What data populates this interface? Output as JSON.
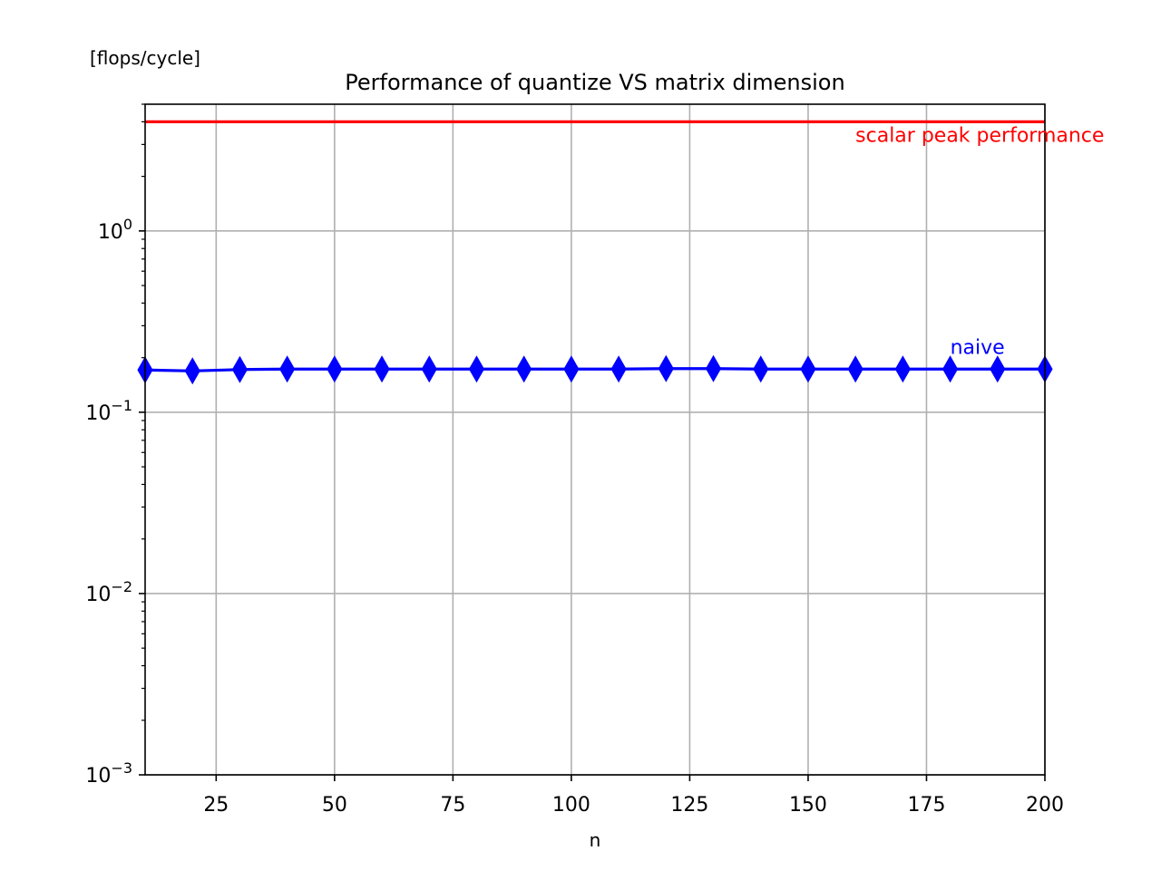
{
  "chart_data": {
    "type": "line",
    "title": "Performance of quantize VS matrix dimension",
    "xlabel": "n",
    "ylabel": "[flops/cycle]",
    "x_scale": "linear",
    "y_scale": "log",
    "xlim": [
      10,
      200
    ],
    "ylim": [
      0.001,
      5
    ],
    "x_ticks": [
      25,
      50,
      75,
      100,
      125,
      150,
      175,
      200
    ],
    "y_ticks": [
      {
        "value": 0.001,
        "base": "10",
        "exp": "−3"
      },
      {
        "value": 0.01,
        "base": "10",
        "exp": "−2"
      },
      {
        "value": 0.1,
        "base": "10",
        "exp": "−1"
      },
      {
        "value": 1,
        "base": "10",
        "exp": "0"
      }
    ],
    "grid": true,
    "series": [
      {
        "name": "naive",
        "color": "#0000ff",
        "marker": "thin-diamond",
        "x": [
          10,
          20,
          30,
          40,
          50,
          60,
          70,
          80,
          90,
          100,
          110,
          120,
          130,
          140,
          150,
          160,
          170,
          180,
          190,
          200
        ],
        "values": [
          0.171,
          0.169,
          0.172,
          0.173,
          0.173,
          0.173,
          0.173,
          0.173,
          0.173,
          0.173,
          0.173,
          0.174,
          0.174,
          0.173,
          0.173,
          0.173,
          0.173,
          0.173,
          0.173,
          0.173
        ]
      }
    ],
    "reference_lines": [
      {
        "name": "scalar peak performance",
        "value": 4,
        "color": "#ff0000"
      }
    ],
    "annotations": [
      {
        "text": "naive",
        "x": 180,
        "y": 0.21,
        "color": "#0000ff"
      },
      {
        "text": "scalar peak performance",
        "x": 160,
        "y": 3.1,
        "color": "#ff0000"
      }
    ]
  }
}
